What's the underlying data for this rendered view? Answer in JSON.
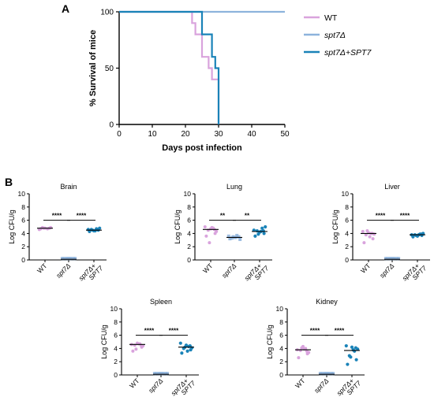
{
  "panels": {
    "a": "A",
    "b": "B"
  },
  "colors": {
    "wt": "#d9a3dd",
    "spt7": "#8db3dc",
    "spt7_spt7": "#1a83b8"
  },
  "chart_data": [
    {
      "type": "line",
      "id": "survival",
      "xlabel": "Days post infection",
      "ylabel": "% Survival of mice",
      "xlim": [
        0,
        50
      ],
      "ylim": [
        0,
        100
      ],
      "xticks": [
        "0",
        "10",
        "20",
        "30",
        "40",
        "50"
      ],
      "yticks": [
        "0",
        "50",
        "100"
      ],
      "legend_position": "right",
      "series": [
        {
          "name": "WT",
          "name_prefix": "WT",
          "name_italic": "",
          "color_key": "wt",
          "x": [
            0,
            22,
            22,
            23,
            23,
            25,
            25,
            27,
            27,
            28,
            28,
            30,
            30
          ],
          "y": [
            100,
            100,
            90,
            90,
            80,
            80,
            60,
            60,
            50,
            50,
            40,
            40,
            0
          ]
        },
        {
          "name": "spt7Δ",
          "name_prefix": "",
          "name_italic": "spt7Δ",
          "color_key": "spt7",
          "x": [
            0,
            50
          ],
          "y": [
            100,
            100
          ]
        },
        {
          "name": "spt7Δ+SPT7",
          "name_prefix": "",
          "name_italic": "spt7Δ+SPT7",
          "color_key": "spt7_spt7",
          "x": [
            0,
            25,
            25,
            28,
            28,
            29,
            29,
            30,
            30
          ],
          "y": [
            100,
            100,
            80,
            80,
            60,
            60,
            50,
            50,
            0
          ]
        }
      ]
    },
    {
      "type": "scatter",
      "id": "brain",
      "title": "Brain",
      "ylabel": "Log CFU/g",
      "ylim": [
        0,
        10
      ],
      "yticks": [
        "0",
        "2",
        "4",
        "6",
        "8",
        "10"
      ],
      "categories": [
        "WT",
        "spt7Δ",
        "spt7Δ+",
        "SPT7"
      ],
      "significance": [
        "****",
        "****"
      ],
      "groups": [
        {
          "values": [
            4.7,
            4.8,
            4.9,
            4.7,
            4.8,
            4.6,
            4.9,
            4.8
          ],
          "median": 4.8
        },
        {
          "values": [
            0.1,
            0.1,
            0.1,
            0.1,
            0.1,
            0.1,
            0.1,
            0.1,
            0.1
          ],
          "median": 0.1
        },
        {
          "values": [
            4.3,
            4.5,
            4.6,
            4.7,
            4.4,
            4.6,
            4.8,
            4.5,
            4.4,
            4.6
          ],
          "median": 4.5
        }
      ]
    },
    {
      "type": "scatter",
      "id": "lung",
      "title": "Lung",
      "ylabel": "Log CFU/g",
      "ylim": [
        0,
        10
      ],
      "yticks": [
        "0",
        "2",
        "4",
        "6",
        "8",
        "10"
      ],
      "categories": [
        "WT",
        "spt7Δ",
        "spt7Δ+",
        "SPT7"
      ],
      "significance": [
        "**",
        "**"
      ],
      "groups": [
        {
          "values": [
            3.6,
            4.0,
            4.5,
            4.8,
            4.7,
            5.0,
            4.3,
            2.6,
            4.9,
            4.6
          ],
          "median": 4.6
        },
        {
          "values": [
            3.2,
            3.5,
            3.3,
            3.7,
            3.4,
            3.6,
            3.1,
            3.5,
            3.4
          ],
          "median": 3.4
        },
        {
          "values": [
            3.6,
            4.0,
            4.4,
            4.8,
            4.2,
            4.5,
            5.0,
            3.9,
            4.3,
            4.4
          ],
          "median": 4.3
        }
      ]
    },
    {
      "type": "scatter",
      "id": "liver",
      "title": "Liver",
      "ylabel": "Log CFU/g",
      "ylim": [
        0,
        10
      ],
      "yticks": [
        "0",
        "2",
        "4",
        "6",
        "8",
        "10"
      ],
      "categories": [
        "WT",
        "spt7Δ",
        "spt7Δ+",
        "SPT7"
      ],
      "significance": [
        "****",
        "****"
      ],
      "groups": [
        {
          "values": [
            2.6,
            3.2,
            3.8,
            4.0,
            4.1,
            4.3,
            3.9,
            4.4,
            3.5,
            4.0
          ],
          "median": 4.0
        },
        {
          "values": [
            0.1,
            0.1,
            0.1,
            0.1,
            0.1,
            0.1,
            0.1,
            0.1,
            0.1
          ],
          "median": 0.1
        },
        {
          "values": [
            3.5,
            3.7,
            3.8,
            3.9,
            3.6,
            3.8,
            4.0,
            3.7,
            3.8,
            3.9
          ],
          "median": 3.8
        }
      ]
    },
    {
      "type": "scatter",
      "id": "spleen",
      "title": "Spleen",
      "ylabel": "Log CFU/g",
      "ylim": [
        0,
        10
      ],
      "yticks": [
        "0",
        "2",
        "4",
        "6",
        "8",
        "10"
      ],
      "categories": [
        "WT",
        "spt7Δ",
        "spt7Δ+",
        "SPT7"
      ],
      "significance": [
        "****",
        "****"
      ],
      "groups": [
        {
          "values": [
            3.6,
            4.2,
            4.5,
            4.7,
            4.8,
            4.6,
            4.4,
            3.9,
            4.7,
            4.5
          ],
          "median": 4.6
        },
        {
          "values": [
            0.1,
            0.1,
            0.1,
            0.1,
            0.1,
            0.1,
            0.1,
            0.1,
            0.1
          ],
          "median": 0.1
        },
        {
          "values": [
            3.3,
            3.8,
            4.0,
            4.3,
            4.5,
            4.8,
            4.1,
            4.2,
            3.6,
            4.4
          ],
          "median": 4.2
        }
      ]
    },
    {
      "type": "scatter",
      "id": "kidney",
      "title": "Kidney",
      "ylabel": "Log CFU/g",
      "ylim": [
        0,
        10
      ],
      "yticks": [
        "0",
        "2",
        "4",
        "6",
        "8",
        "10"
      ],
      "categories": [
        "WT",
        "spt7Δ",
        "spt7Δ+",
        "SPT7"
      ],
      "significance": [
        "****",
        "****"
      ],
      "groups": [
        {
          "values": [
            2.6,
            3.2,
            3.7,
            4.0,
            4.3,
            3.8,
            3.4,
            4.1,
            3.9,
            3.6
          ],
          "median": 3.8
        },
        {
          "values": [
            0.1,
            0.1,
            0.1,
            0.1,
            0.1,
            0.1,
            0.1,
            0.1,
            0.1
          ],
          "median": 0.1
        },
        {
          "values": [
            1.6,
            2.3,
            2.9,
            3.6,
            4.2,
            4.4,
            3.9,
            2.7,
            3.8,
            4.1
          ],
          "median": 3.7
        }
      ]
    }
  ]
}
